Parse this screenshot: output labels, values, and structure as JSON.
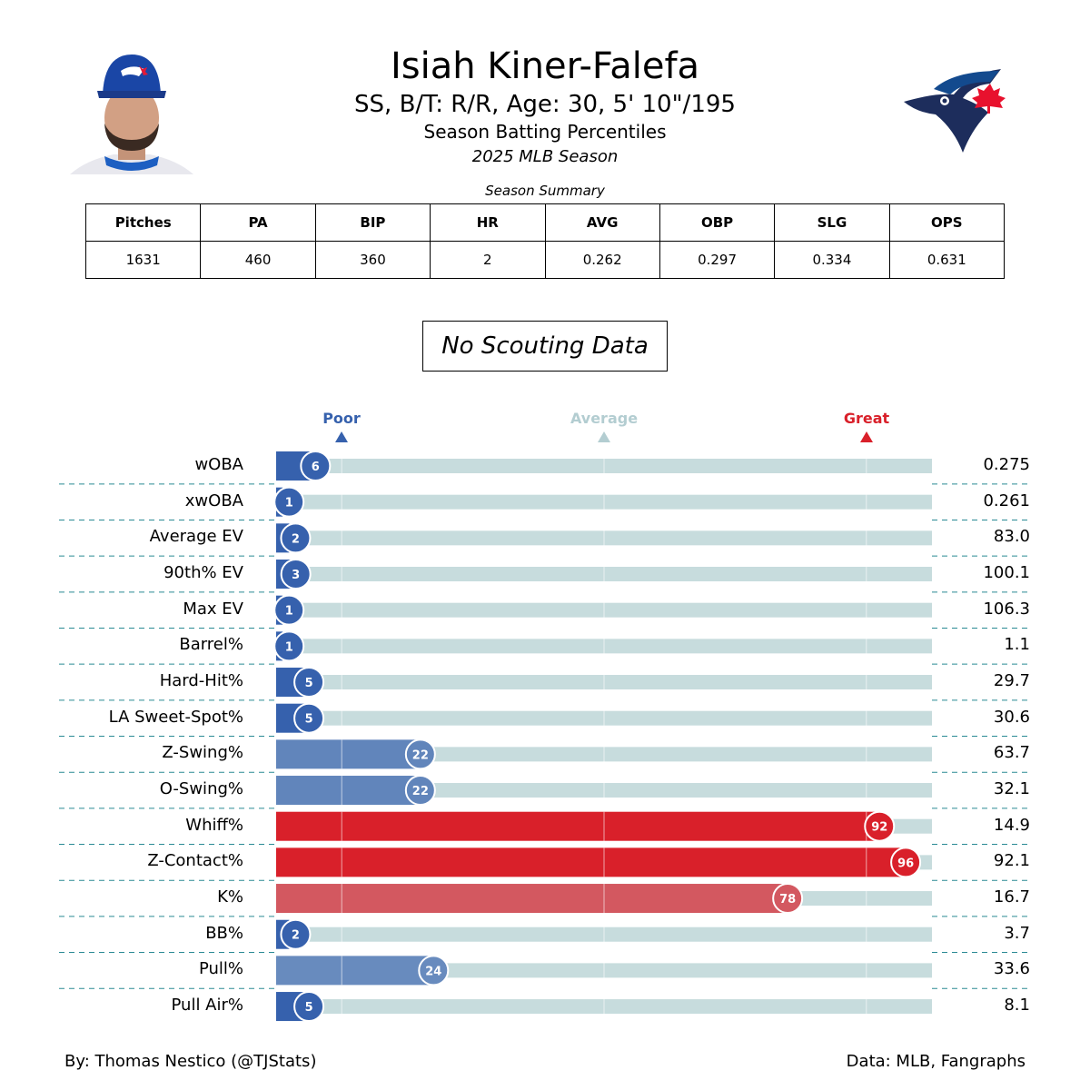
{
  "header": {
    "player_name": "Isiah Kiner-Falefa",
    "bio": "SS, B/T: R/R, Age: 30, 5' 10\"/195",
    "subtitle": "Season Batting Percentiles",
    "season": "2025 MLB Season"
  },
  "summary": {
    "caption": "Season Summary",
    "headers": [
      "Pitches",
      "PA",
      "BIP",
      "HR",
      "AVG",
      "OBP",
      "SLG",
      "OPS"
    ],
    "values": [
      "1631",
      "460",
      "360",
      "2",
      "0.262",
      "0.297",
      "0.334",
      "0.631"
    ]
  },
  "scouting": {
    "text": "No Scouting Data"
  },
  "scale": {
    "poor": "Poor",
    "average": "Average",
    "great": "Great",
    "poor_color": "#3661ad",
    "average_color": "#b3cdd1",
    "great_color": "#d9202a"
  },
  "chart_data": {
    "type": "bar",
    "orientation": "horizontal",
    "xlim": [
      0,
      100
    ],
    "reference_lines": [
      10,
      50,
      90
    ],
    "categories": [
      "wOBA",
      "xwOBA",
      "Average EV",
      "90th% EV",
      "Max EV",
      "Barrel%",
      "Hard-Hit%",
      "LA Sweet-Spot%",
      "Z-Swing%",
      "O-Swing%",
      "Whiff%",
      "Z-Contact%",
      "K%",
      "BB%",
      "Pull%",
      "Pull Air%"
    ],
    "percentiles": [
      6,
      1,
      2,
      3,
      1,
      1,
      5,
      5,
      22,
      22,
      92,
      96,
      78,
      2,
      24,
      5
    ],
    "stat_values": [
      "0.275",
      "0.261",
      "83.0",
      "100.1",
      "106.3",
      "1.1",
      "29.7",
      "30.6",
      "63.7",
      "32.1",
      "14.9",
      "92.1",
      "16.7",
      "3.7",
      "33.6",
      "8.1"
    ]
  },
  "footer": {
    "author": "By: Thomas Nestico (@TJStats)",
    "source": "Data: MLB, Fangraphs"
  }
}
